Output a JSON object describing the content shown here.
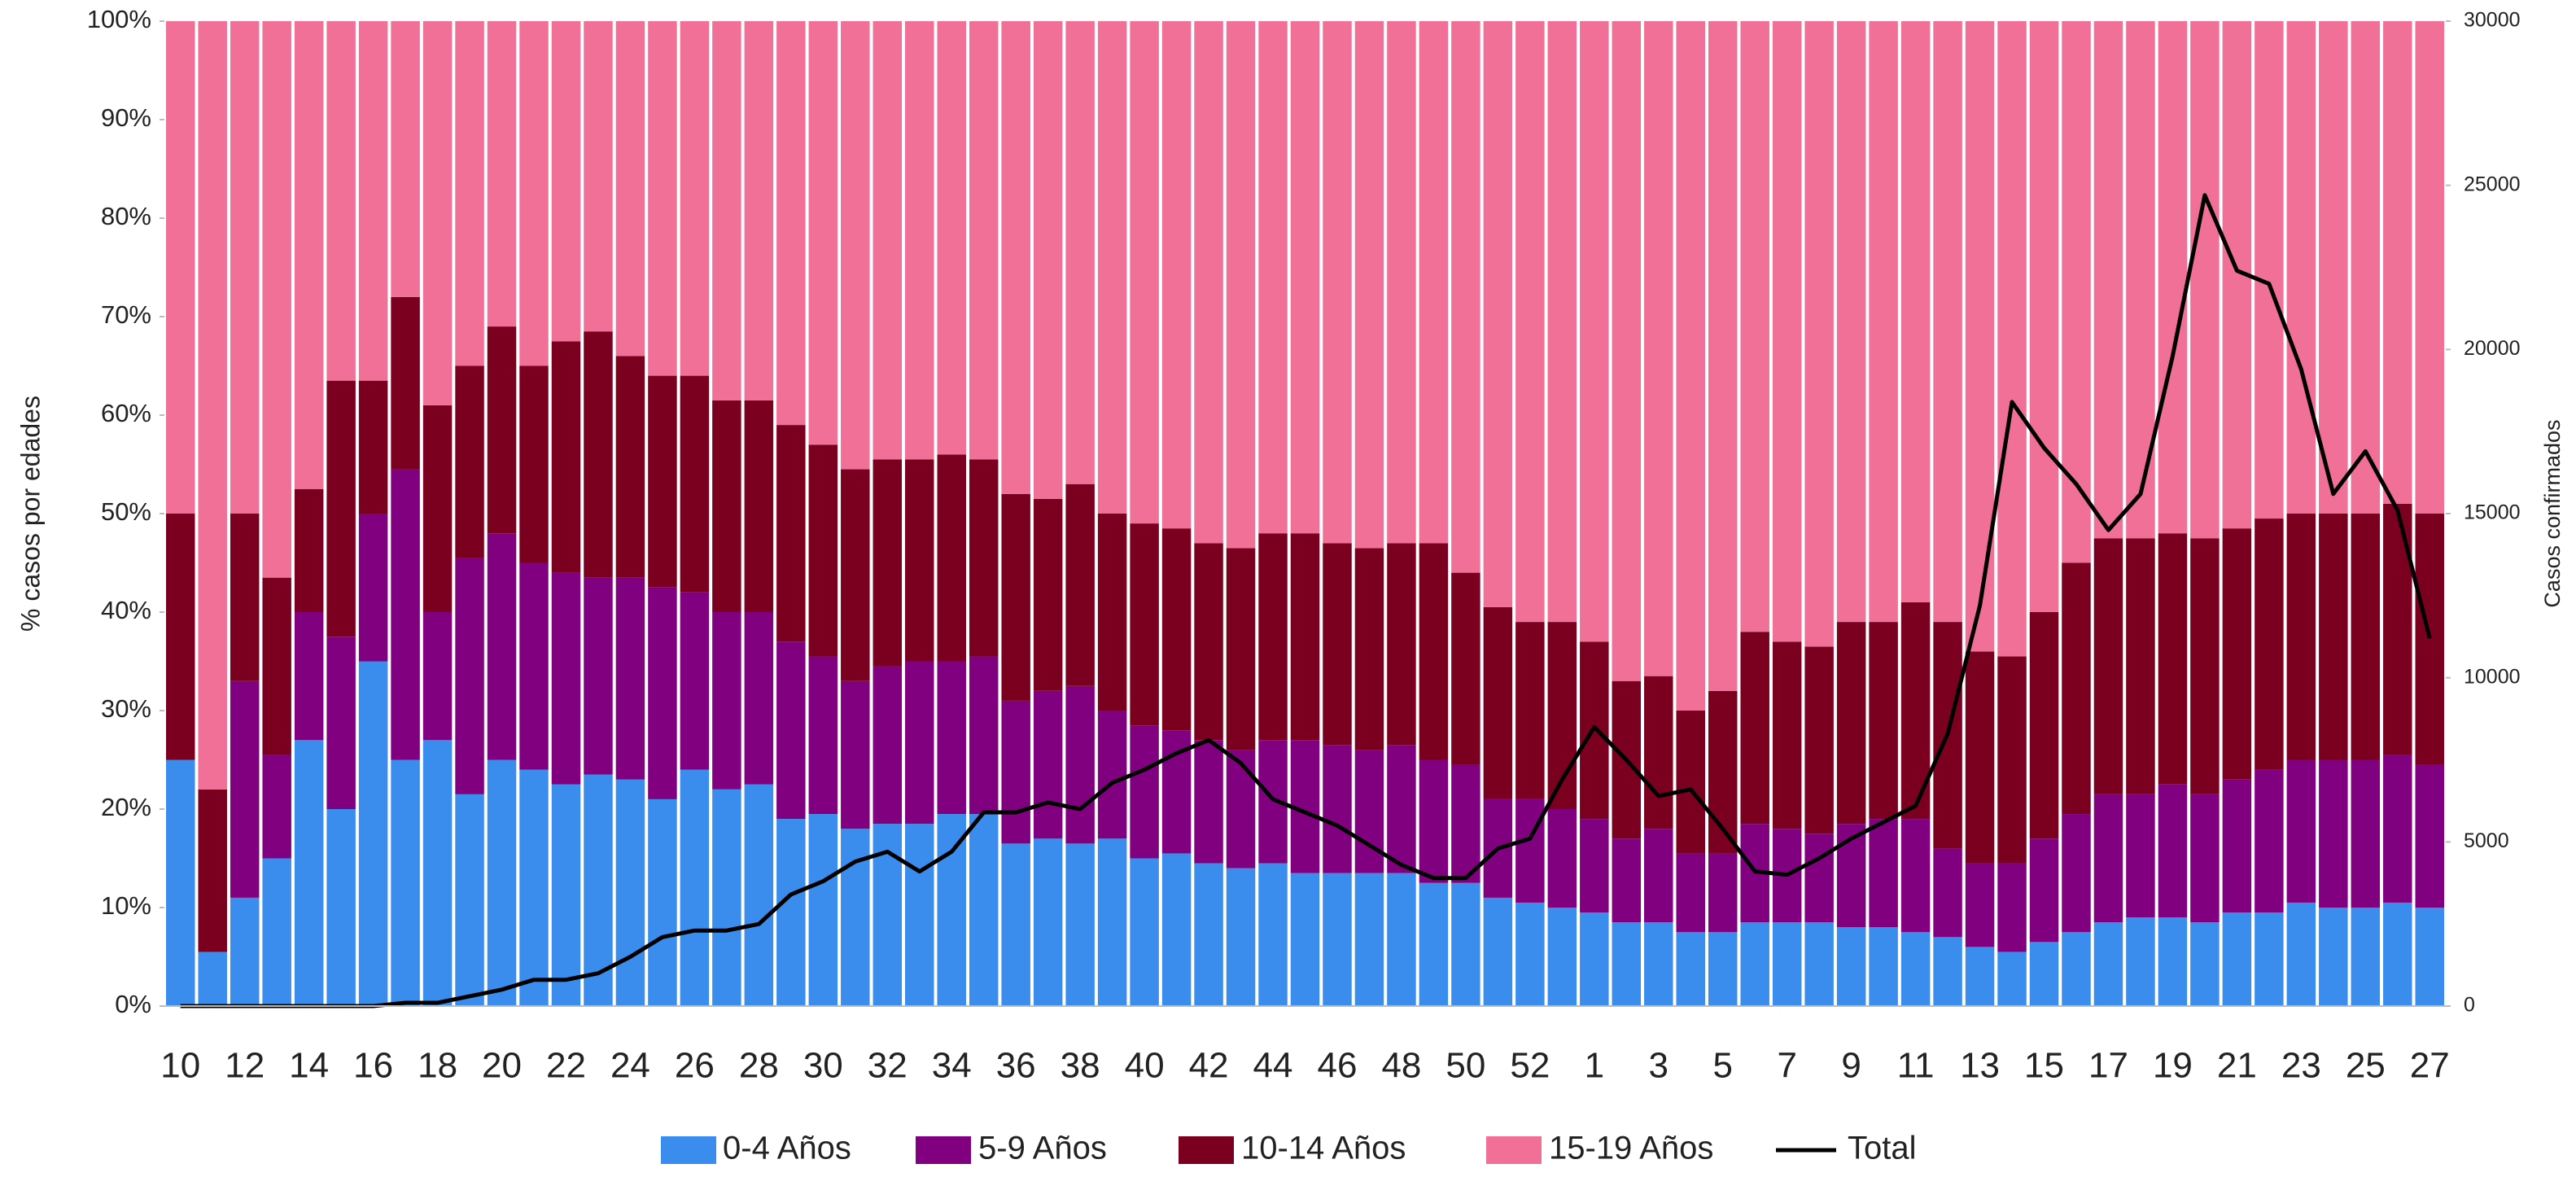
{
  "chart_data": {
    "type": "bar",
    "stacked": true,
    "categories": [
      "10",
      null,
      "12",
      null,
      "14",
      null,
      "16",
      null,
      "18",
      null,
      "20",
      null,
      "22",
      null,
      "24",
      null,
      "26",
      null,
      "28",
      null,
      "30",
      null,
      "32",
      null,
      "34",
      null,
      "36",
      null,
      "38",
      null,
      "40",
      null,
      "42",
      null,
      "44",
      null,
      "46",
      null,
      "48",
      null,
      "50",
      null,
      "52",
      null,
      "1",
      null,
      "3",
      null,
      "5",
      null,
      "7",
      null,
      "9",
      null,
      "11",
      null,
      "13",
      null,
      "15",
      null,
      "17",
      null,
      "19",
      null,
      "21",
      null,
      "23",
      null,
      "25",
      null,
      "27"
    ],
    "ylabel": "% casos por edades",
    "y2label": "Casos confirmados",
    "ylim": [
      0,
      100
    ],
    "yticks": [
      {
        "value": 0,
        "label": "0%"
      },
      {
        "value": 10,
        "label": "10%"
      },
      {
        "value": 20,
        "label": "20%"
      },
      {
        "value": 30,
        "label": "30%"
      },
      {
        "value": 40,
        "label": "40%"
      },
      {
        "value": 50,
        "label": "50%"
      },
      {
        "value": 60,
        "label": "60%"
      },
      {
        "value": 70,
        "label": "70%"
      },
      {
        "value": 80,
        "label": "80%"
      },
      {
        "value": 90,
        "label": "90%"
      },
      {
        "value": 100,
        "label": "100%"
      }
    ],
    "y2lim": [
      0,
      30000
    ],
    "y2ticks": [
      0,
      5000,
      10000,
      15000,
      20000,
      25000,
      30000
    ],
    "legend": "bottom",
    "series": [
      {
        "name": "0-4 Años",
        "color": "#3b8ded",
        "values": [
          25,
          5.5,
          11,
          15,
          27,
          20,
          35,
          25,
          27,
          21.5,
          25,
          24,
          22.5,
          23.5,
          23,
          21,
          24,
          22,
          22.5,
          19,
          19.5,
          18,
          18.5,
          18.5,
          19.5,
          19.5,
          16.5,
          17,
          16.5,
          17,
          15,
          15.5,
          14.5,
          14,
          14.5,
          13.5,
          13.5,
          13.5,
          13.5,
          12.5,
          12.5,
          11,
          10.5,
          10,
          9.5,
          8.5,
          8.5,
          7.5,
          7.5,
          8.5,
          8.5,
          8.5,
          8,
          8,
          7.5,
          7,
          6,
          5.5,
          6.5,
          7.5,
          8.5,
          9,
          9,
          8.5,
          9.5,
          9.5,
          10.5,
          10,
          10,
          10.5,
          10
        ]
      },
      {
        "name": "5-9 Años",
        "color": "#800080",
        "values": [
          0,
          0,
          22,
          10.5,
          13,
          17.5,
          15,
          29.5,
          13,
          24,
          23,
          21,
          21.5,
          20,
          20.5,
          21.5,
          18,
          18,
          17.5,
          18,
          16,
          15,
          16,
          16.5,
          15.5,
          16,
          14.5,
          15,
          16,
          13,
          13.5,
          12.5,
          12.5,
          12,
          12.5,
          13.5,
          13,
          12.5,
          13,
          12.5,
          12,
          10,
          10.5,
          10,
          9.5,
          8.5,
          9.5,
          8,
          8,
          10,
          9.5,
          9,
          10.5,
          11,
          11.5,
          9,
          8.5,
          9,
          10.5,
          12,
          13,
          12.5,
          13.5,
          13,
          13.5,
          14.5,
          14.5,
          15,
          15,
          15,
          14.5
        ]
      },
      {
        "name": "10-14 Años",
        "color": "#7b0020",
        "values": [
          25,
          16.5,
          17,
          18,
          12.5,
          26,
          13.5,
          17.5,
          21,
          19.5,
          21,
          20,
          23.5,
          25,
          22.5,
          21.5,
          22,
          21.5,
          21.5,
          22,
          21.5,
          21.5,
          21,
          20.5,
          21,
          20,
          21,
          19.5,
          20.5,
          20,
          20.5,
          20.5,
          20,
          20.5,
          21,
          21,
          20.5,
          20.5,
          20.5,
          22,
          19.5,
          19.5,
          18,
          19,
          18,
          16,
          15.5,
          14.5,
          16.5,
          19.5,
          19,
          19,
          20.5,
          20,
          22,
          23,
          21.5,
          21,
          23,
          25.5,
          26,
          26,
          25.5,
          26,
          25.5,
          25.5,
          25,
          25,
          25,
          25.5,
          25.5
        ]
      },
      {
        "name": "15-19 Años",
        "color": "#f07098",
        "values": [
          50,
          78,
          50,
          56.5,
          47.5,
          36.5,
          36.5,
          28,
          39,
          35,
          31,
          35,
          32.5,
          31.5,
          34,
          36,
          36,
          38.5,
          38.5,
          41,
          43,
          45.5,
          44.5,
          44.5,
          44,
          44.5,
          48,
          48.5,
          47,
          50,
          51,
          51.5,
          53,
          53.5,
          52,
          52,
          53,
          53.5,
          53,
          53,
          56,
          59.5,
          61,
          61,
          63,
          67,
          66.5,
          70,
          68,
          62,
          63,
          63.5,
          61,
          61,
          59,
          61,
          64,
          64.5,
          60,
          55,
          52.5,
          52.5,
          52,
          52.5,
          51.5,
          50.5,
          50,
          50,
          50,
          49,
          50
        ]
      },
      {
        "name": "Total",
        "color": "#000000",
        "type": "line",
        "axis": "y2",
        "values": [
          0,
          0,
          0,
          0,
          0,
          0,
          0,
          100,
          100,
          300,
          500,
          800,
          800,
          1000,
          1500,
          2100,
          2300,
          2300,
          2500,
          3400,
          3800,
          4400,
          4700,
          4100,
          4700,
          5900,
          5900,
          6200,
          6000,
          6800,
          7200,
          7700,
          8100,
          7400,
          6300,
          5900,
          5500,
          4900,
          4300,
          3900,
          3900,
          4800,
          5100,
          6900,
          8500,
          7500,
          6400,
          6600,
          5400,
          4100,
          4000,
          4500,
          5100,
          5600,
          6100,
          8300,
          12200,
          18400,
          17000,
          15900,
          14500,
          15600,
          19800,
          24700,
          22400,
          22000,
          19400,
          15600,
          16900,
          15100,
          11200
        ]
      }
    ]
  }
}
